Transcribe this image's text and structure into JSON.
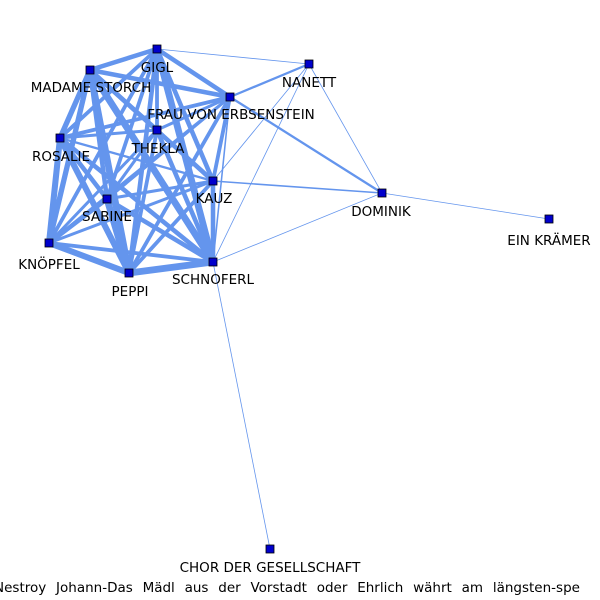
{
  "graph": {
    "colors": {
      "edge": "#6495ED",
      "node_fill": "#0000CC",
      "node_stroke": "#000000",
      "label": "#000000",
      "background": "#ffffff"
    },
    "nodes": [
      {
        "id": "gigl",
        "label": "GIGL"
      },
      {
        "id": "madame_storch",
        "label": "MADAME STORCH"
      },
      {
        "id": "nanett",
        "label": "NANETT"
      },
      {
        "id": "frau_von_erbsenstein",
        "label": "FRAU VON ERBSENSTEIN"
      },
      {
        "id": "thekla",
        "label": "THEKLA"
      },
      {
        "id": "rosalie",
        "label": "ROSALIE"
      },
      {
        "id": "kauz",
        "label": "KAUZ"
      },
      {
        "id": "dominik",
        "label": "DOMINIK"
      },
      {
        "id": "sabine",
        "label": "SABINE"
      },
      {
        "id": "ein_kraemer",
        "label": "EIN KRÄMER"
      },
      {
        "id": "knoepfel",
        "label": "KNÖPFEL"
      },
      {
        "id": "schnoferl",
        "label": "SCHNOFERL"
      },
      {
        "id": "peppi",
        "label": "PEPPI"
      },
      {
        "id": "chor",
        "label": "CHOR DER GESELLSCHAFT"
      }
    ],
    "edges": [
      {
        "source": "gigl",
        "target": "madame_storch",
        "weight": 6
      },
      {
        "source": "gigl",
        "target": "frau_von_erbsenstein",
        "weight": 6
      },
      {
        "source": "gigl",
        "target": "nanett",
        "weight": 1
      },
      {
        "source": "gigl",
        "target": "thekla",
        "weight": 5
      },
      {
        "source": "gigl",
        "target": "rosalie",
        "weight": 5
      },
      {
        "source": "gigl",
        "target": "kauz",
        "weight": 6
      },
      {
        "source": "gigl",
        "target": "sabine",
        "weight": 5
      },
      {
        "source": "gigl",
        "target": "knoepfel",
        "weight": 5
      },
      {
        "source": "gigl",
        "target": "schnoferl",
        "weight": 9
      },
      {
        "source": "gigl",
        "target": "peppi",
        "weight": 6
      },
      {
        "source": "madame_storch",
        "target": "frau_von_erbsenstein",
        "weight": 6
      },
      {
        "source": "madame_storch",
        "target": "thekla",
        "weight": 6
      },
      {
        "source": "madame_storch",
        "target": "rosalie",
        "weight": 7
      },
      {
        "source": "madame_storch",
        "target": "kauz",
        "weight": 6
      },
      {
        "source": "madame_storch",
        "target": "sabine",
        "weight": 6
      },
      {
        "source": "madame_storch",
        "target": "knoepfel",
        "weight": 7
      },
      {
        "source": "madame_storch",
        "target": "schnoferl",
        "weight": 9
      },
      {
        "source": "madame_storch",
        "target": "peppi",
        "weight": 9
      },
      {
        "source": "nanett",
        "target": "frau_von_erbsenstein",
        "weight": 3
      },
      {
        "source": "nanett",
        "target": "kauz",
        "weight": 1
      },
      {
        "source": "nanett",
        "target": "dominik",
        "weight": 1
      },
      {
        "source": "nanett",
        "target": "schnoferl",
        "weight": 1
      },
      {
        "source": "frau_von_erbsenstein",
        "target": "thekla",
        "weight": 4
      },
      {
        "source": "frau_von_erbsenstein",
        "target": "rosalie",
        "weight": 5
      },
      {
        "source": "frau_von_erbsenstein",
        "target": "kauz",
        "weight": 5
      },
      {
        "source": "frau_von_erbsenstein",
        "target": "dominik",
        "weight": 3
      },
      {
        "source": "frau_von_erbsenstein",
        "target": "sabine",
        "weight": 4
      },
      {
        "source": "frau_von_erbsenstein",
        "target": "knoepfel",
        "weight": 4
      },
      {
        "source": "frau_von_erbsenstein",
        "target": "schnoferl",
        "weight": 2
      },
      {
        "source": "frau_von_erbsenstein",
        "target": "peppi",
        "weight": 5
      },
      {
        "source": "thekla",
        "target": "rosalie",
        "weight": 4
      },
      {
        "source": "thekla",
        "target": "kauz",
        "weight": 4
      },
      {
        "source": "thekla",
        "target": "sabine",
        "weight": 4
      },
      {
        "source": "thekla",
        "target": "knoepfel",
        "weight": 4
      },
      {
        "source": "thekla",
        "target": "schnoferl",
        "weight": 6
      },
      {
        "source": "thekla",
        "target": "peppi",
        "weight": 5
      },
      {
        "source": "rosalie",
        "target": "kauz",
        "weight": 3
      },
      {
        "source": "rosalie",
        "target": "sabine",
        "weight": 6
      },
      {
        "source": "rosalie",
        "target": "knoepfel",
        "weight": 8
      },
      {
        "source": "rosalie",
        "target": "schnoferl",
        "weight": 6
      },
      {
        "source": "rosalie",
        "target": "peppi",
        "weight": 8
      },
      {
        "source": "kauz",
        "target": "dominik",
        "weight": 2
      },
      {
        "source": "kauz",
        "target": "sabine",
        "weight": 4
      },
      {
        "source": "kauz",
        "target": "knoepfel",
        "weight": 4
      },
      {
        "source": "kauz",
        "target": "schnoferl",
        "weight": 6
      },
      {
        "source": "kauz",
        "target": "peppi",
        "weight": 5
      },
      {
        "source": "dominik",
        "target": "ein_kraemer",
        "weight": 1
      },
      {
        "source": "dominik",
        "target": "schnoferl",
        "weight": 1
      },
      {
        "source": "sabine",
        "target": "knoepfel",
        "weight": 6
      },
      {
        "source": "sabine",
        "target": "schnoferl",
        "weight": 6
      },
      {
        "source": "sabine",
        "target": "peppi",
        "weight": 9
      },
      {
        "source": "knoepfel",
        "target": "schnoferl",
        "weight": 5
      },
      {
        "source": "knoepfel",
        "target": "peppi",
        "weight": 8
      },
      {
        "source": "schnoferl",
        "target": "peppi",
        "weight": 9
      },
      {
        "source": "schnoferl",
        "target": "chor",
        "weight": 1
      }
    ]
  },
  "caption": "Nestroy Johann-Das Mädl aus der Vorstadt oder Ehrlich währt am längsten-spe"
}
